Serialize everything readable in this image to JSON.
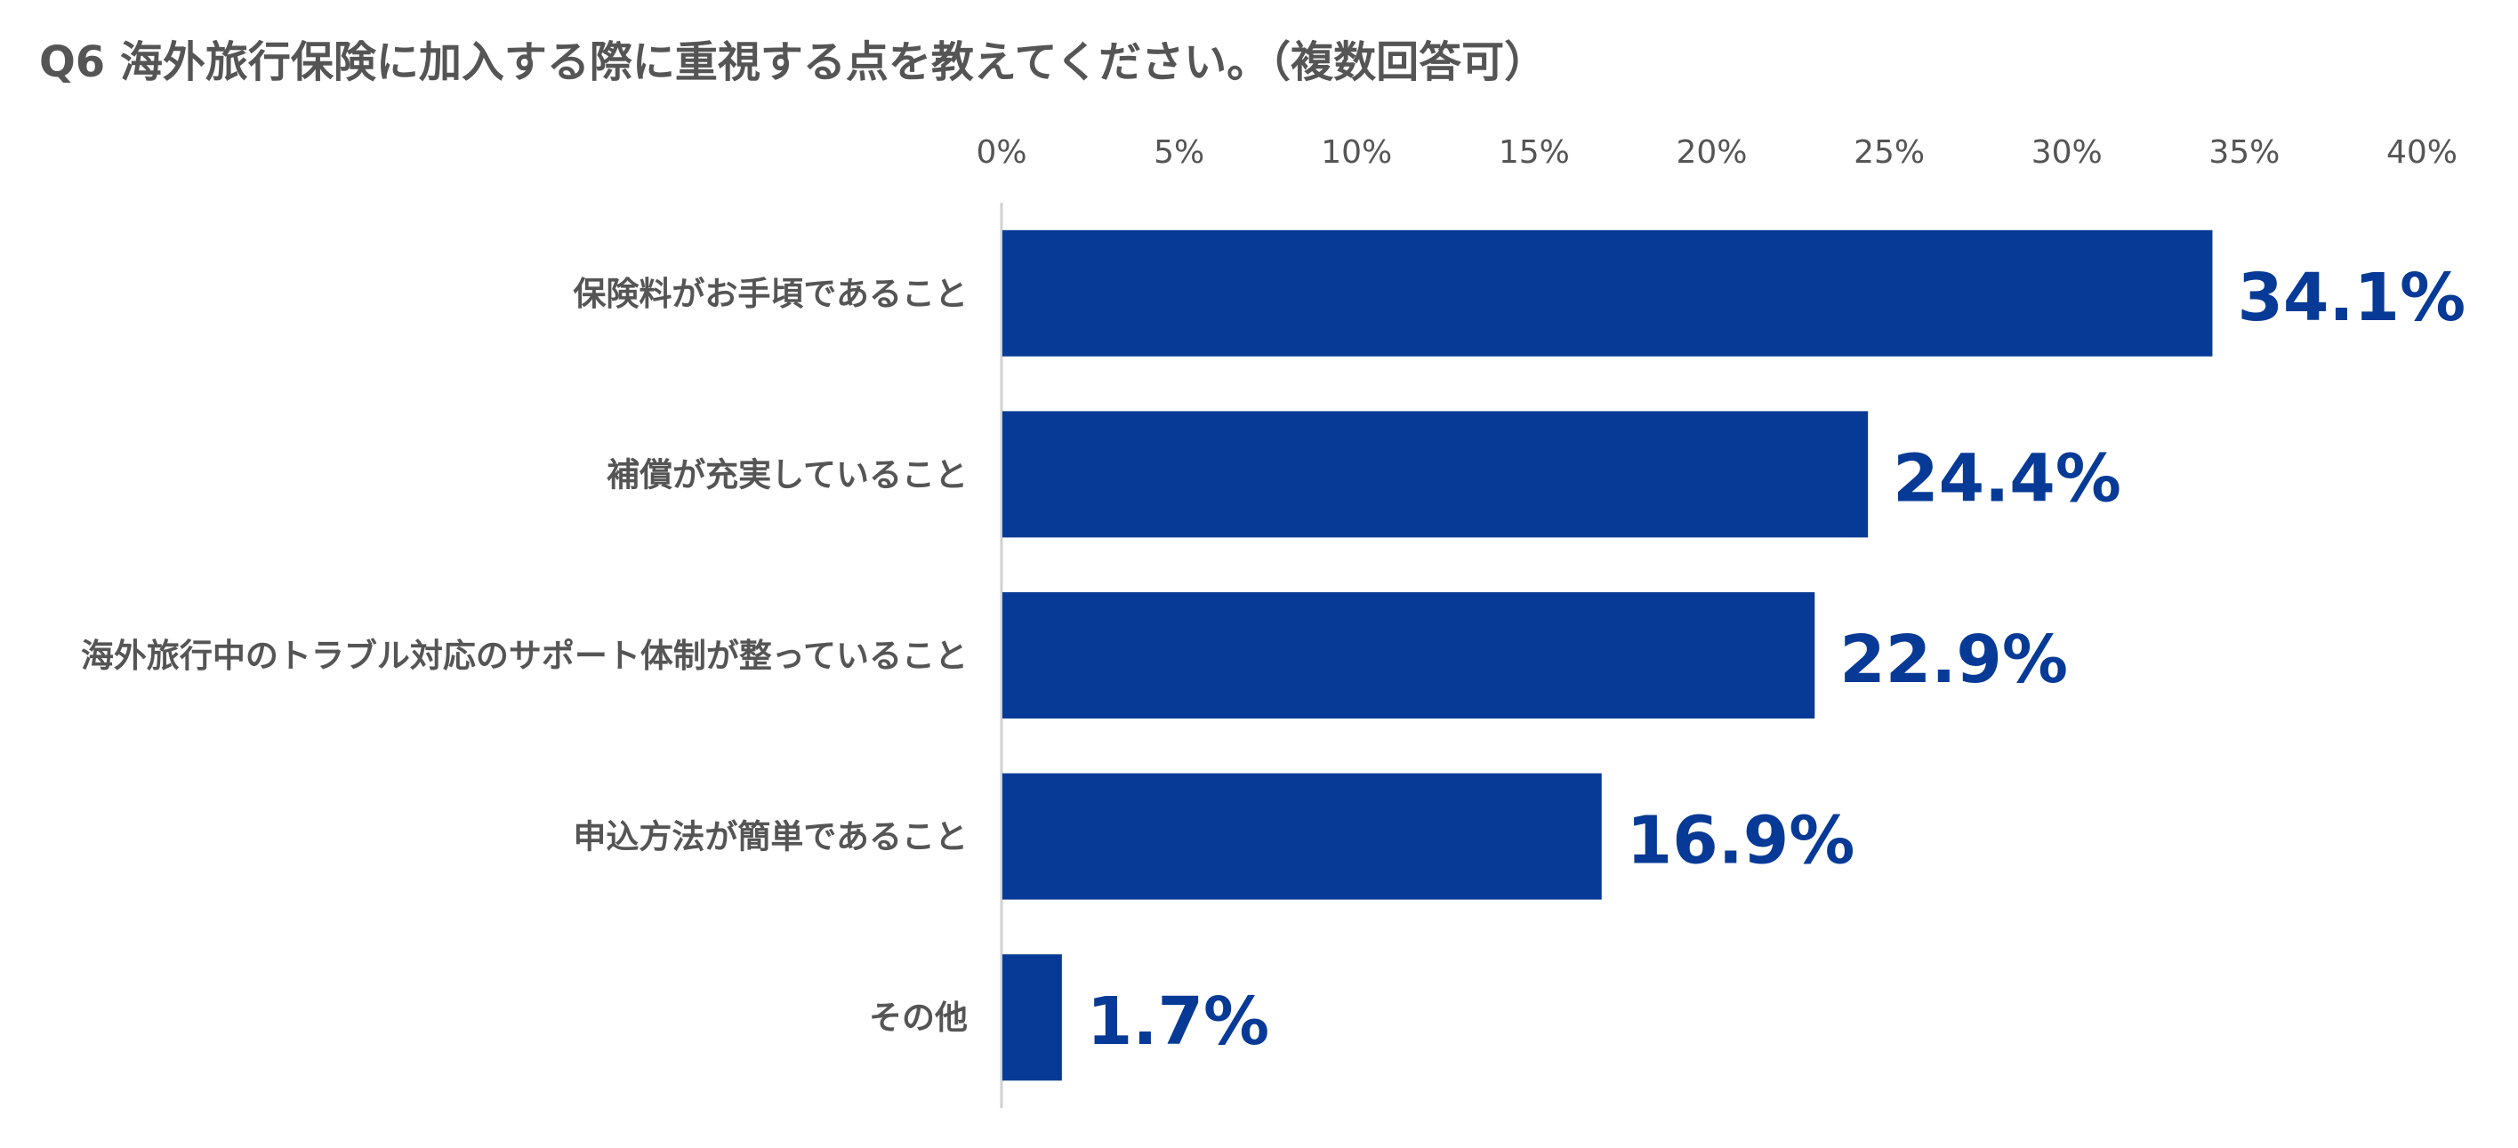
{
  "chart_data": {
    "type": "bar",
    "orientation": "horizontal",
    "title": "Q6 海外旅行保険に加入する際に重視する点を教えてください。（複数回答可）",
    "categories": [
      "保険料がお手頃であること",
      "補償が充実していること",
      "海外旅行中のトラブル対応のサポート体制が整っていること",
      "申込方法が簡単であること",
      "その他"
    ],
    "values": [
      34.1,
      24.4,
      22.9,
      16.9,
      1.7
    ],
    "data_labels": [
      "34.1%",
      "24.4%",
      "22.9%",
      "16.9%",
      "1.7%"
    ],
    "xlim": [
      0,
      40
    ],
    "xticks": [
      0,
      5,
      10,
      15,
      20,
      25,
      30,
      35,
      40
    ],
    "xtick_labels": [
      "0%",
      "5%",
      "10%",
      "15%",
      "20%",
      "25%",
      "30%",
      "35%",
      "40%"
    ],
    "x_axis_position": "top",
    "grid": false,
    "legend": "none",
    "colors": {
      "bar": "#063A96",
      "data_label": "#063A96",
      "text": "#555555",
      "axis": "#d0d0d0"
    }
  }
}
